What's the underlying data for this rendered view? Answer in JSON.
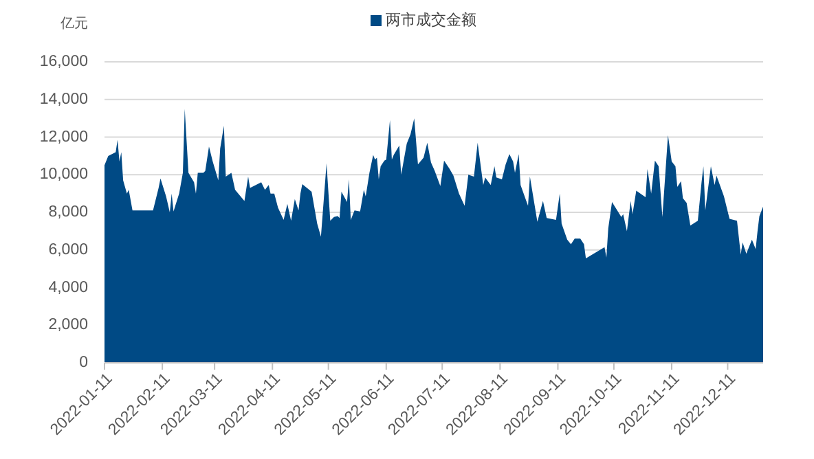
{
  "chart_data": {
    "type": "area",
    "ylabel": "亿元",
    "legend": "top",
    "grid": "y",
    "xlim": [
      "2022-01-11",
      "2022-12-30"
    ],
    "xticks": [
      "2022-01-11",
      "2022-02-11",
      "2022-03-11",
      "2022-04-11",
      "2022-05-11",
      "2022-06-11",
      "2022-07-11",
      "2022-08-11",
      "2022-09-11",
      "2022-10-11",
      "2022-11-11",
      "2022-12-11"
    ],
    "ylim": [
      0,
      16000
    ],
    "yticks": [
      {
        "value": 0,
        "label": "0"
      },
      {
        "value": 2000,
        "label": "2,000"
      },
      {
        "value": 4000,
        "label": "4,000"
      },
      {
        "value": 6000,
        "label": "6,000"
      },
      {
        "value": 8000,
        "label": "8,000"
      },
      {
        "value": 10000,
        "label": "10,000"
      },
      {
        "value": 12000,
        "label": "12,000"
      },
      {
        "value": 14000,
        "label": "14,000"
      },
      {
        "value": 16000,
        "label": "16,000"
      }
    ],
    "series": [
      {
        "name": "两市成交金额",
        "color": "#004a85",
        "x": [
          "2022-01-11",
          "2022-01-13",
          "2022-01-15",
          "2022-01-17",
          "2022-01-18",
          "2022-01-19",
          "2022-01-20",
          "2022-01-21",
          "2022-01-23",
          "2022-01-24",
          "2022-01-26",
          "2022-02-06",
          "2022-02-09",
          "2022-02-10",
          "2022-02-13",
          "2022-02-15",
          "2022-02-16",
          "2022-02-17",
          "2022-02-20",
          "2022-02-22",
          "2022-02-23",
          "2022-02-25",
          "2022-02-28",
          "2022-03-01",
          "2022-03-02",
          "2022-03-05",
          "2022-03-06",
          "2022-03-08",
          "2022-03-10",
          "2022-03-13",
          "2022-03-14",
          "2022-03-16",
          "2022-03-17",
          "2022-03-20",
          "2022-03-22",
          "2022-03-27",
          "2022-03-29",
          "2022-03-30",
          "2022-04-05",
          "2022-04-07",
          "2022-04-09",
          "2022-04-10",
          "2022-04-12",
          "2022-04-14",
          "2022-04-17",
          "2022-04-19",
          "2022-04-21",
          "2022-04-23",
          "2022-04-25",
          "2022-04-26",
          "2022-04-27",
          "2022-05-02",
          "2022-05-05",
          "2022-05-07",
          "2022-05-10",
          "2022-05-12",
          "2022-05-14",
          "2022-05-16",
          "2022-05-17",
          "2022-05-18",
          "2022-05-21",
          "2022-05-22",
          "2022-05-23",
          "2022-05-25",
          "2022-05-28",
          "2022-05-30",
          "2022-05-31",
          "2022-06-02",
          "2022-06-04",
          "2022-06-05",
          "2022-06-06",
          "2022-06-07",
          "2022-06-08",
          "2022-06-10",
          "2022-06-11",
          "2022-06-13",
          "2022-06-14",
          "2022-06-15",
          "2022-06-18",
          "2022-06-19",
          "2022-06-22",
          "2022-06-24",
          "2022-06-26",
          "2022-06-28",
          "2022-07-01",
          "2022-07-03",
          "2022-07-05",
          "2022-07-07",
          "2022-07-10",
          "2022-07-12",
          "2022-07-15",
          "2022-07-17",
          "2022-07-20",
          "2022-07-23",
          "2022-07-25",
          "2022-07-28",
          "2022-07-30",
          "2022-08-02",
          "2022-08-03",
          "2022-08-06",
          "2022-08-08",
          "2022-08-09",
          "2022-08-12",
          "2022-08-14",
          "2022-08-16",
          "2022-08-18",
          "2022-08-19",
          "2022-08-21",
          "2022-08-22",
          "2022-08-26",
          "2022-08-27",
          "2022-08-31",
          "2022-09-03",
          "2022-09-05",
          "2022-09-10",
          "2022-09-12",
          "2022-09-13",
          "2022-09-16",
          "2022-09-18",
          "2022-09-20",
          "2022-09-23",
          "2022-09-25",
          "2022-09-26",
          "2022-10-06",
          "2022-10-07",
          "2022-10-08",
          "2022-10-10",
          "2022-10-15",
          "2022-10-16",
          "2022-10-18",
          "2022-10-20",
          "2022-10-21",
          "2022-10-23",
          "2022-10-28",
          "2022-10-29",
          "2022-10-31",
          "2022-11-02",
          "2022-11-04",
          "2022-11-06",
          "2022-11-09",
          "2022-11-11",
          "2022-11-13",
          "2022-11-14",
          "2022-11-16",
          "2022-11-17",
          "2022-11-19",
          "2022-11-21",
          "2022-11-25",
          "2022-11-27",
          "2022-11-28",
          "2022-11-29",
          "2022-12-02",
          "2022-12-04",
          "2022-12-05",
          "2022-12-09",
          "2022-12-12",
          "2022-12-16",
          "2022-12-18",
          "2022-12-19",
          "2022-12-21",
          "2022-12-24",
          "2022-12-26",
          "2022-12-27",
          "2022-12-28",
          "2022-12-30"
        ],
        "values": [
          10500,
          11000,
          11100,
          11200,
          11850,
          10700,
          11200,
          9700,
          9000,
          9200,
          8100,
          8100,
          9300,
          9800,
          8850,
          8000,
          9000,
          8050,
          9000,
          10100,
          13500,
          10100,
          9600,
          9000,
          10100,
          10100,
          10200,
          11500,
          10700,
          9700,
          11400,
          12600,
          9900,
          10100,
          9200,
          8600,
          9900,
          9300,
          9600,
          9200,
          9450,
          9000,
          9000,
          8250,
          7600,
          8450,
          7550,
          8700,
          8100,
          9000,
          9500,
          9100,
          7400,
          6700,
          10600,
          7550,
          7750,
          7800,
          7700,
          9100,
          8550,
          9750,
          7600,
          8100,
          8050,
          9200,
          8850,
          10100,
          11050,
          10800,
          10900,
          9750,
          10450,
          10750,
          10800,
          12900,
          10800,
          11050,
          11550,
          10000,
          11650,
          12150,
          13000,
          10550,
          10900,
          11700,
          10650,
          10200,
          9400,
          10750,
          10300,
          9950,
          9000,
          8350,
          10000,
          9900,
          11700,
          9450,
          9850,
          9450,
          10450,
          9850,
          9750,
          10550,
          11100,
          10700,
          10100,
          11100,
          9450,
          8350,
          9900,
          7500,
          8600,
          7700,
          7600,
          9000,
          7400,
          6550,
          6300,
          6600,
          6600,
          6300,
          5550,
          6150,
          5600,
          7150,
          8550,
          7750,
          7900,
          7000,
          8600,
          7900,
          9150,
          8800,
          10300,
          9000,
          10750,
          10450,
          7750,
          12100,
          10700,
          10450,
          9350,
          9650,
          8750,
          8500,
          7300,
          7550,
          9600,
          10450,
          8100,
          10450,
          9450,
          9950,
          8850,
          7650,
          7550,
          5750,
          6400,
          5800,
          6550,
          6050,
          7000,
          7800,
          8300
        ]
      }
    ]
  }
}
